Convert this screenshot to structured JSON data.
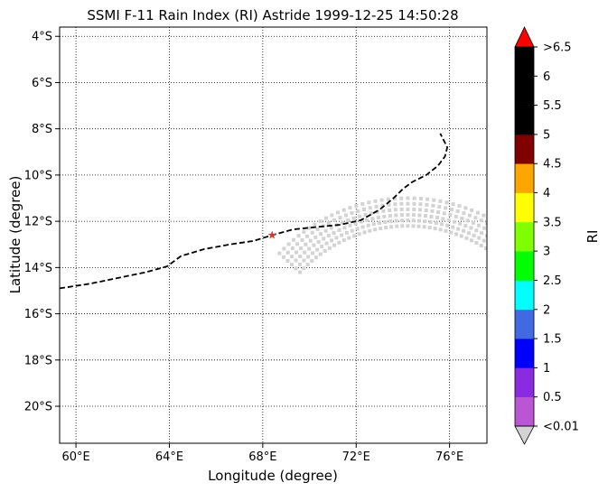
{
  "chart_data": {
    "type": "scatter",
    "title": "SSMI F-11 Rain Index (RI) Astride 1999-12-25 14:50:28",
    "xlabel": "Longitude (degree)",
    "ylabel": "Latitude (degree)",
    "xlim": [
      59.3,
      77.6
    ],
    "ylim": [
      -21.6,
      -3.6
    ],
    "x_ticks": [
      60,
      64,
      68,
      72,
      76
    ],
    "x_tick_labels": [
      "60°E",
      "64°E",
      "68°E",
      "72°E",
      "76°E"
    ],
    "y_ticks": [
      -4,
      -6,
      -8,
      -10,
      -12,
      -14,
      -16,
      -18,
      -20
    ],
    "y_tick_labels": [
      "4°S",
      "6°S",
      "8°S",
      "10°S",
      "12°S",
      "14°S",
      "16°S",
      "18°S",
      "20°S"
    ],
    "grid": true,
    "grid_style": "dotted",
    "track": {
      "style": "dashed",
      "color": "#000000",
      "lon": [
        59.3,
        60.6,
        61.8,
        63.0,
        63.9,
        64.5,
        65.5,
        66.6,
        67.6,
        68.4,
        69.3,
        70.3,
        71.3,
        72.2,
        73.0,
        73.6,
        74.0,
        74.4,
        75.0,
        75.5,
        75.8,
        75.9,
        75.6
      ],
      "lat": [
        -14.9,
        -14.7,
        -14.45,
        -14.2,
        -13.95,
        -13.5,
        -13.2,
        -13.0,
        -12.85,
        -12.6,
        -12.35,
        -12.25,
        -12.15,
        -11.95,
        -11.5,
        -11.0,
        -10.6,
        -10.3,
        -10.0,
        -9.6,
        -9.2,
        -8.8,
        -8.2
      ]
    },
    "storm_center": {
      "lon": 68.4,
      "lat": -12.6,
      "marker": "star",
      "color": "#e03030"
    },
    "swath": {
      "color": "#d3d3d3",
      "arc_center": {
        "lon": 74.2,
        "lat": -18.5
      },
      "inner_radius_deg": 6.3,
      "outer_radius_deg": 7.5,
      "angle_start_deg": 0,
      "angle_end_deg": 137,
      "value_class": "<0.01"
    },
    "colorbar": {
      "label": "RI",
      "tick_labels": [
        "<0.01",
        "0.5",
        "1",
        "1.5",
        "2",
        "2.5",
        "3",
        "3.5",
        "4",
        "4.5",
        "5",
        "5.5",
        "6",
        ">6.5"
      ],
      "colors": [
        "#ba55d3",
        "#8a2be2",
        "#0000ff",
        "#4169e1",
        "#00ffff",
        "#00ff00",
        "#7fff00",
        "#ffff00",
        "#ffa500",
        "#800000",
        "#000000",
        "#000000",
        "#000000"
      ],
      "under_color": "#d3d3d3",
      "over_color": "#ff0000"
    }
  }
}
